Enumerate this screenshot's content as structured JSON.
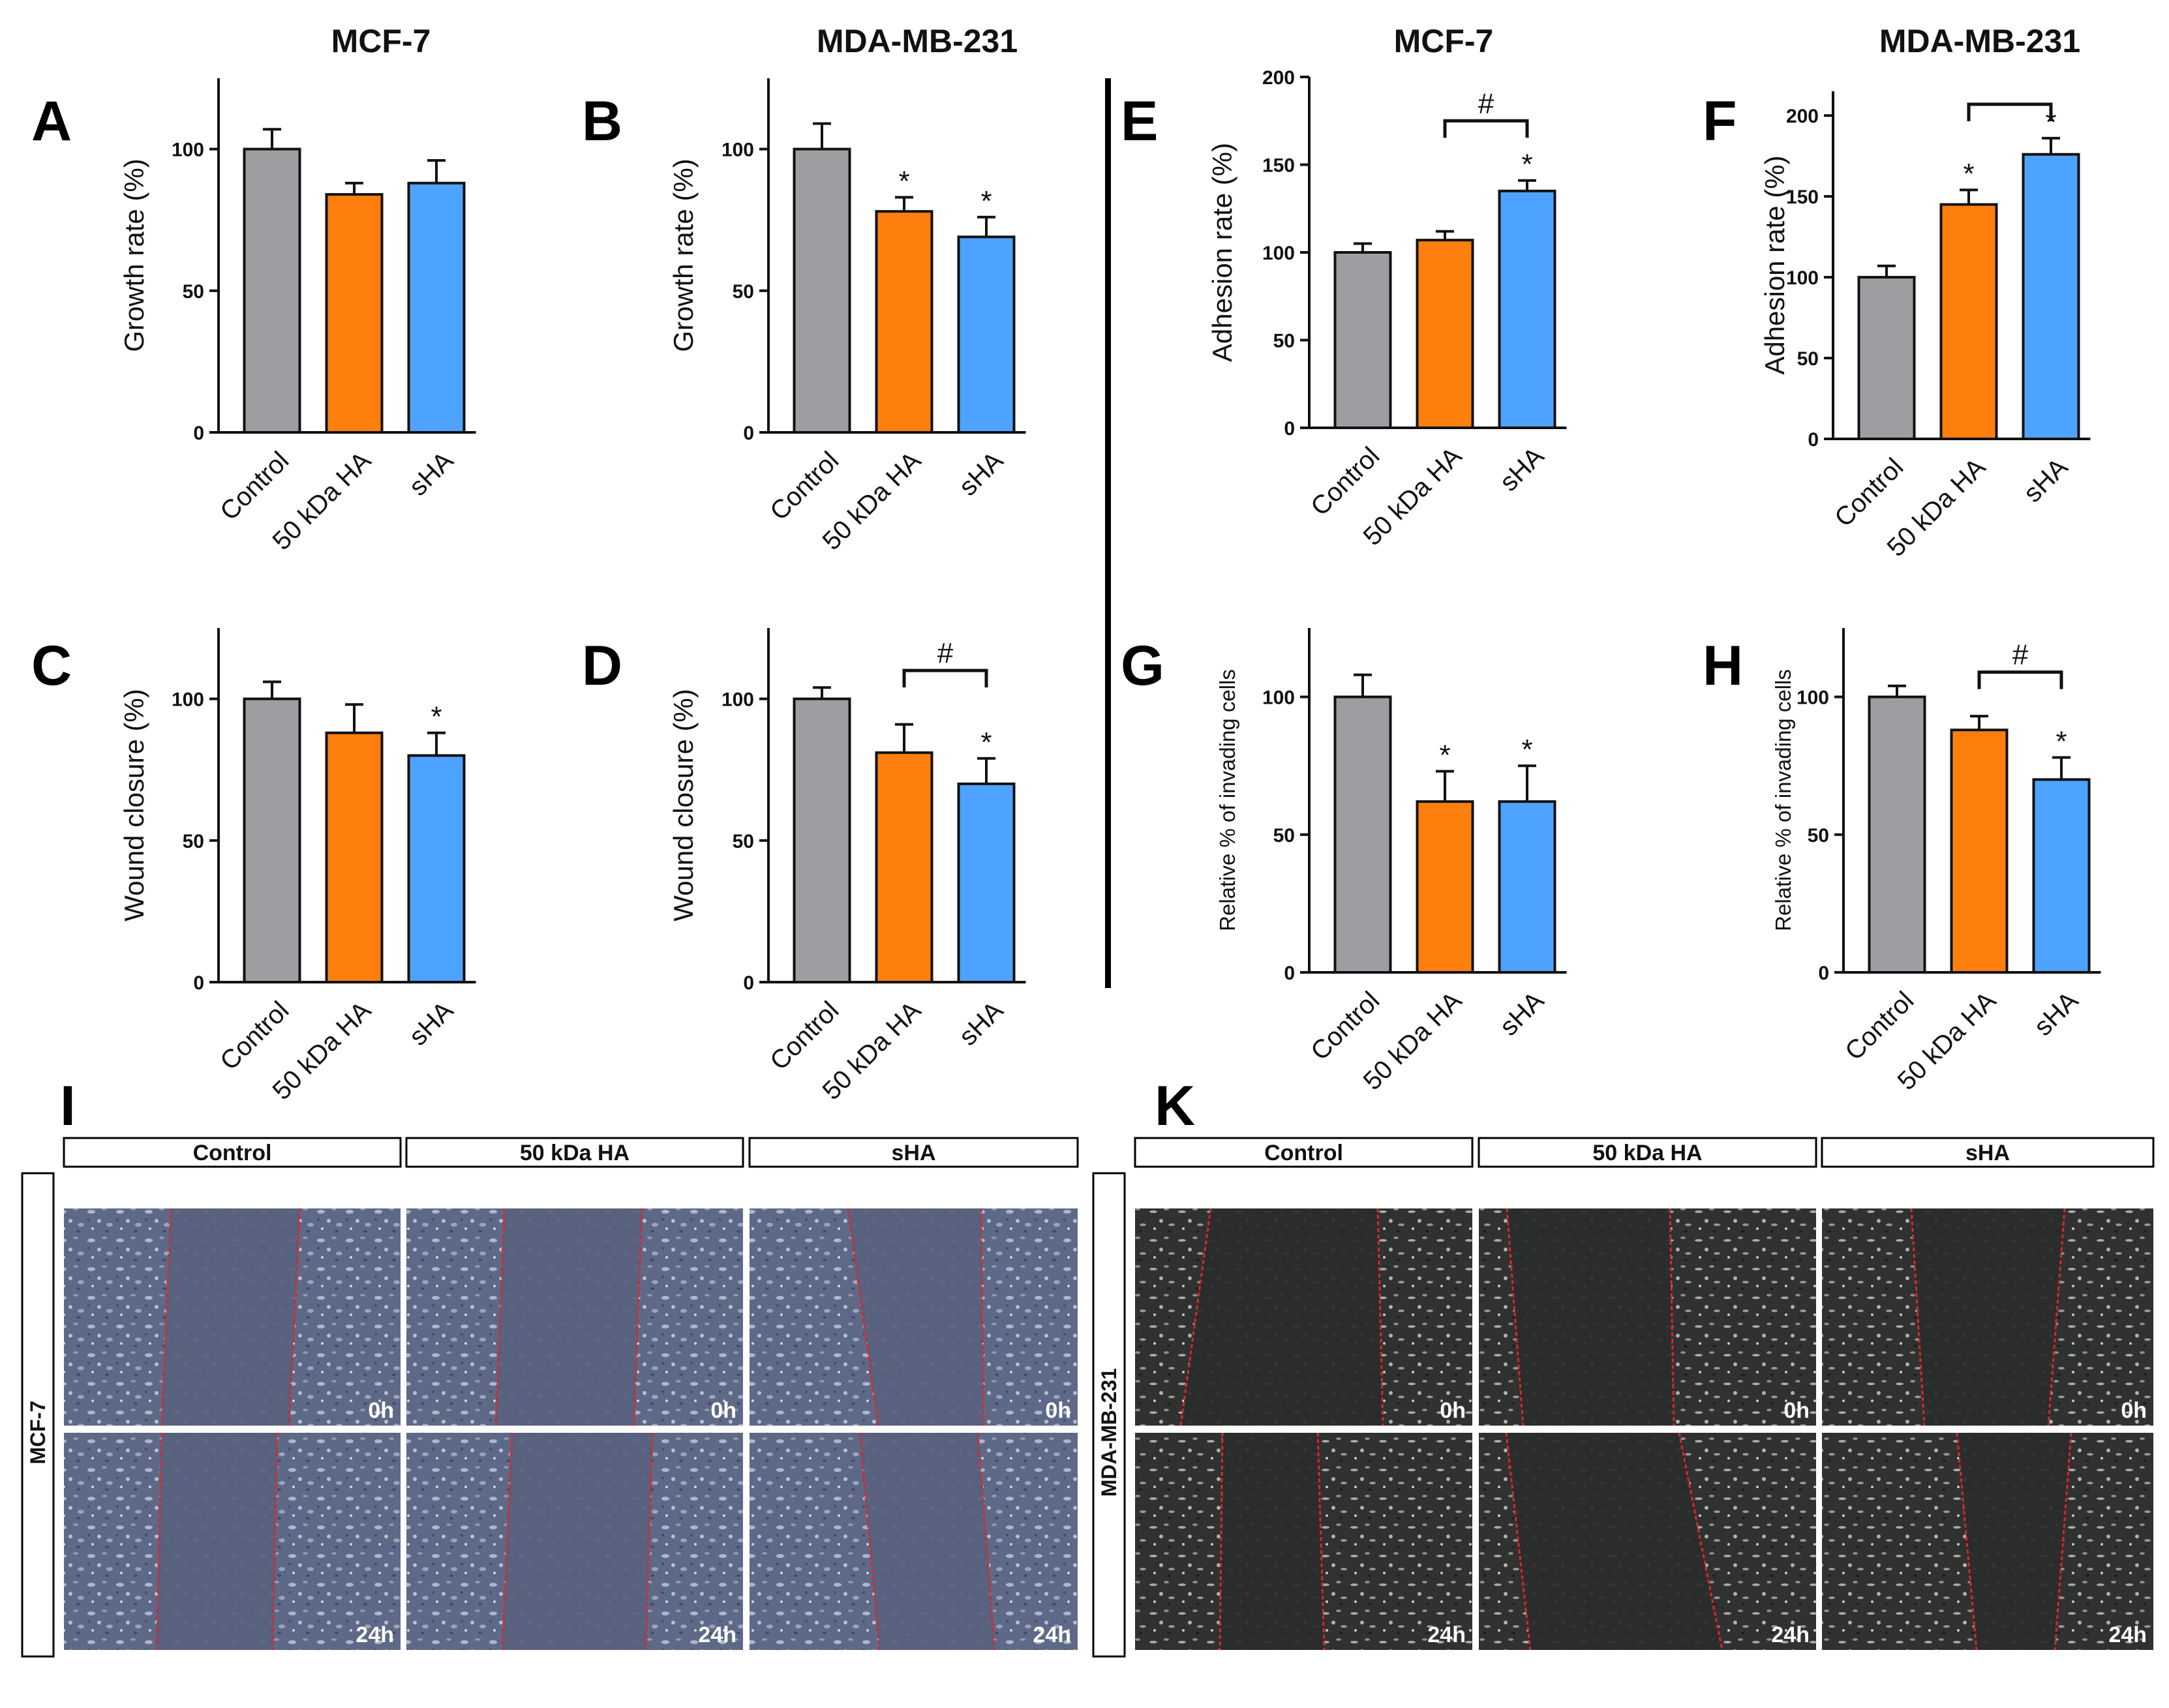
{
  "column_titles": [
    "MCF-7",
    "MDA-MB-231",
    "MCF-7",
    "MDA-MB-231"
  ],
  "colors": {
    "control": "#9e9ea2",
    "ha50": "#ff7f0e",
    "sha": "#4da3ff",
    "axis": "#111111"
  },
  "chart_data": [
    {
      "type": "bar",
      "panel": "A",
      "categories": [
        "Control",
        "50 kDa HA",
        "sHA"
      ],
      "values": [
        100,
        84,
        88
      ],
      "errors": [
        7,
        4,
        8
      ],
      "ylabel": "Growth rate (%)",
      "ylim": [
        0,
        125
      ],
      "ticks": [
        0,
        50,
        100
      ],
      "tick_labels": [
        "0",
        "50",
        "100"
      ],
      "sig": [
        "",
        "",
        ""
      ],
      "bracket": null
    },
    {
      "type": "bar",
      "panel": "B",
      "categories": [
        "Control",
        "50 kDa HA",
        "sHA"
      ],
      "values": [
        100,
        78,
        69
      ],
      "errors": [
        9,
        5,
        7
      ],
      "ylabel": "Growth rate (%)",
      "ylim": [
        0,
        125
      ],
      "ticks": [
        0,
        50,
        100
      ],
      "tick_labels": [
        "0",
        "50",
        "100"
      ],
      "sig": [
        "",
        "*",
        "*"
      ],
      "bracket": null
    },
    {
      "type": "bar",
      "panel": "C",
      "categories": [
        "Control",
        "50 kDa HA",
        "sHA"
      ],
      "values": [
        100,
        88,
        80
      ],
      "errors": [
        6,
        10,
        8
      ],
      "ylabel": "Wound closure (%)",
      "ylim": [
        0,
        125
      ],
      "ticks": [
        0,
        50,
        100
      ],
      "tick_labels": [
        "0",
        "50",
        "100"
      ],
      "sig": [
        "",
        "",
        "*"
      ],
      "bracket": null
    },
    {
      "type": "bar",
      "panel": "D",
      "categories": [
        "Control",
        "50 kDa HA",
        "sHA"
      ],
      "values": [
        100,
        81,
        70
      ],
      "errors": [
        4,
        10,
        9
      ],
      "ylabel": "Wound closure (%)",
      "ylim": [
        0,
        125
      ],
      "ticks": [
        0,
        50,
        100
      ],
      "tick_labels": [
        "0",
        "50",
        "100"
      ],
      "sig": [
        "",
        "",
        "*"
      ],
      "bracket": {
        "from": 1,
        "to": 2,
        "y": 110,
        "label": "#"
      }
    },
    {
      "type": "bar",
      "panel": "E",
      "categories": [
        "Control",
        "50 kDa HA",
        "sHA"
      ],
      "values": [
        100,
        107,
        135
      ],
      "errors": [
        5,
        5,
        6
      ],
      "ylabel": "Adhesion rate (%)",
      "ylim": [
        0,
        200
      ],
      "ticks": [
        0,
        50,
        100,
        150,
        200
      ],
      "tick_labels": [
        "0",
        "50",
        "100",
        "150",
        "200"
      ],
      "sig": [
        "",
        "",
        "*"
      ],
      "bracket": {
        "from": 1,
        "to": 2,
        "y": 175,
        "label": "#"
      }
    },
    {
      "type": "bar",
      "panel": "F",
      "categories": [
        "Control",
        "50 kDa HA",
        "sHA"
      ],
      "values": [
        100,
        145,
        176
      ],
      "errors": [
        7,
        9,
        10
      ],
      "ylabel": "Adhesion rate (%)",
      "ylim": [
        0,
        215
      ],
      "ticks": [
        0,
        50,
        100,
        150,
        200
      ],
      "tick_labels": [
        "0",
        "50",
        "100",
        "150",
        "200"
      ],
      "sig": [
        "",
        "*",
        "*"
      ],
      "bracket": {
        "from": 1,
        "to": 2,
        "y": 207,
        "label": ""
      }
    },
    {
      "type": "bar",
      "panel": "G",
      "categories": [
        "Control",
        "50 kDa HA",
        "sHA"
      ],
      "values": [
        100,
        62,
        62
      ],
      "errors": [
        8,
        11,
        13
      ],
      "ylabel": "Relative % of invading cells",
      "ylim": [
        0,
        125
      ],
      "ticks": [
        0,
        50,
        100
      ],
      "tick_labels": [
        "0",
        "50",
        "100"
      ],
      "sig": [
        "",
        "*",
        "*"
      ],
      "bracket": null
    },
    {
      "type": "bar",
      "panel": "H",
      "categories": [
        "Control",
        "50 kDa HA",
        "sHA"
      ],
      "values": [
        100,
        88,
        70
      ],
      "errors": [
        4,
        5,
        8
      ],
      "ylabel": "Relative % of invading cells",
      "ylim": [
        0,
        125
      ],
      "ticks": [
        0,
        50,
        100
      ],
      "tick_labels": [
        "0",
        "50",
        "100"
      ],
      "sig": [
        "",
        "",
        "*"
      ],
      "bracket": {
        "from": 1,
        "to": 2,
        "y": 109,
        "label": "#"
      }
    }
  ],
  "micrographs": [
    {
      "panel": "I",
      "cell_line": "MCF-7",
      "headers": [
        "Control",
        "50 kDa HA",
        "sHA"
      ],
      "timepoints": [
        "0h",
        "24h"
      ],
      "tone": "blue"
    },
    {
      "panel": "K",
      "cell_line": "MDA-MB-231",
      "headers": [
        "Control",
        "50 kDa HA",
        "sHA"
      ],
      "timepoints": [
        "0h",
        "24h"
      ],
      "tone": "dark"
    }
  ]
}
